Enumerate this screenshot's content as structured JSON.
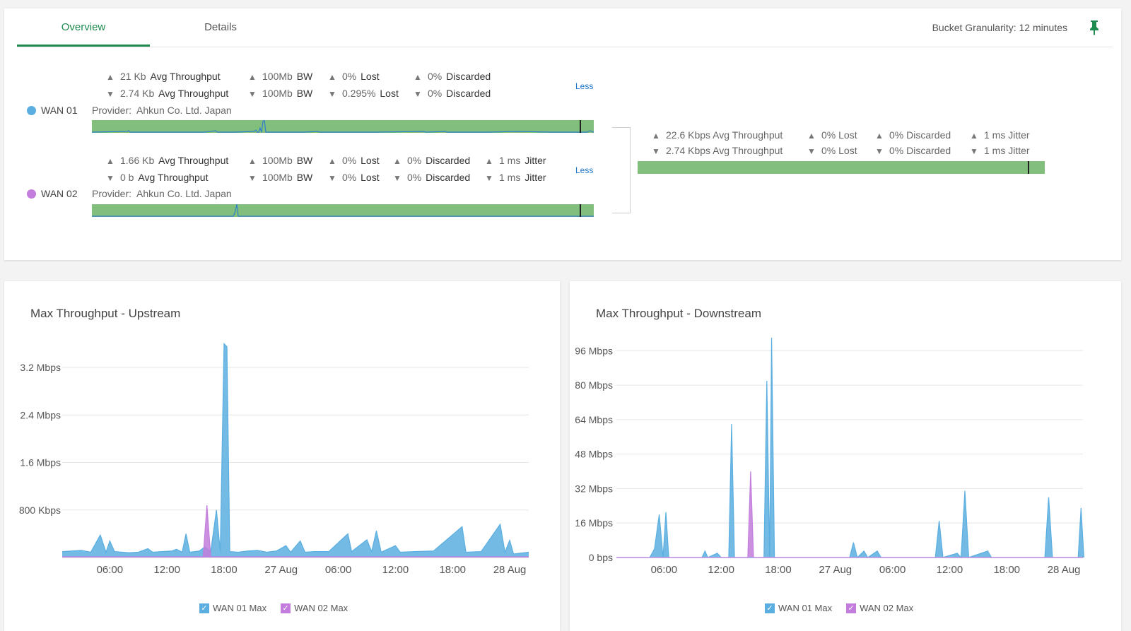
{
  "tabs": [
    {
      "label": "Overview",
      "active": true
    },
    {
      "label": "Details",
      "active": false
    }
  ],
  "granularity": "Bucket Granularity: 12 minutes",
  "colors": {
    "accent": "#1e8a4f",
    "wan01": "#5aaee0",
    "wan02": "#c37ddc",
    "bar_green": "#82bf7c",
    "link": "#1a73c9"
  },
  "wans": [
    {
      "name": "WAN 01",
      "provider_label": "Provider:",
      "provider": "Ahkun Co. Ltd. Japan",
      "less": "Less",
      "up": [
        {
          "value": "21 Kb",
          "label": "Avg Throughput"
        },
        {
          "value": "100Mb",
          "label": "BW"
        },
        {
          "value": "0%",
          "label": "Lost"
        },
        {
          "value": "0%",
          "label": "Discarded"
        }
      ],
      "down": [
        {
          "value": "2.74 Kb",
          "label": "Avg Throughput"
        },
        {
          "value": "100Mb",
          "label": "BW"
        },
        {
          "value": "0.295%",
          "label": "Lost"
        },
        {
          "value": "0%",
          "label": "Discarded"
        }
      ]
    },
    {
      "name": "WAN 02",
      "provider_label": "Provider:",
      "provider": "Ahkun Co. Ltd. Japan",
      "less": "Less",
      "up": [
        {
          "value": "1.66 Kb",
          "label": "Avg Throughput"
        },
        {
          "value": "100Mb",
          "label": "BW"
        },
        {
          "value": "0%",
          "label": "Lost"
        },
        {
          "value": "0%",
          "label": "Discarded"
        },
        {
          "value": "1 ms",
          "label": "Jitter"
        }
      ],
      "down": [
        {
          "value": "0 b",
          "label": "Avg Throughput"
        },
        {
          "value": "100Mb",
          "label": "BW"
        },
        {
          "value": "0%",
          "label": "Lost"
        },
        {
          "value": "0%",
          "label": "Discarded"
        },
        {
          "value": "1 ms",
          "label": "Jitter"
        }
      ]
    }
  ],
  "combined": {
    "up": [
      "22.6 Kbps Avg Throughput",
      "0% Lost",
      "0% Discarded",
      "1 ms Jitter"
    ],
    "down": [
      "2.74 Kbps Avg Throughput",
      "0% Lost",
      "0% Discarded",
      "1 ms Jitter"
    ]
  },
  "icons": {
    "pin": "pin-icon",
    "up": "triangle-up-icon",
    "down": "triangle-down-icon",
    "check": "checkbox-checked-icon"
  },
  "chart_data": [
    {
      "type": "area",
      "title": "Max Throughput - Upstream",
      "xlabel": "",
      "ylabel": "",
      "x_ticks": [
        "06:00",
        "12:00",
        "18:00",
        "27 Aug",
        "06:00",
        "12:00",
        "18:00",
        "28 Aug"
      ],
      "y_ticks": [
        "800 Kbps",
        "1.6 Mbps",
        "2.4 Mbps",
        "3.2 Mbps"
      ],
      "y_tick_values": [
        800,
        1600,
        2400,
        3200
      ],
      "ylim": [
        0,
        3700
      ],
      "x_range_hours": [
        1,
        50
      ],
      "unit": "Kbps",
      "legend_position": "bottom-center",
      "grid": true,
      "series": [
        {
          "name": "WAN 01 Max",
          "color": "#5aaee0",
          "points": [
            [
              1,
              100
            ],
            [
              3,
              120
            ],
            [
              4,
              90
            ],
            [
              5,
              380
            ],
            [
              5.6,
              90
            ],
            [
              6,
              280
            ],
            [
              6.5,
              100
            ],
            [
              8,
              80
            ],
            [
              9,
              90
            ],
            [
              10,
              150
            ],
            [
              10.5,
              90
            ],
            [
              11.5,
              100
            ],
            [
              12.5,
              110
            ],
            [
              13,
              140
            ],
            [
              13.6,
              90
            ],
            [
              14,
              400
            ],
            [
              14.4,
              90
            ],
            [
              15.4,
              110
            ],
            [
              16,
              180
            ],
            [
              16.6,
              100
            ],
            [
              17.2,
              800
            ],
            [
              17.6,
              100
            ],
            [
              18,
              3600
            ],
            [
              18.3,
              3550
            ],
            [
              18.6,
              100
            ],
            [
              19.5,
              90
            ],
            [
              20.5,
              110
            ],
            [
              21.5,
              120
            ],
            [
              22.5,
              90
            ],
            [
              23.5,
              110
            ],
            [
              24.5,
              200
            ],
            [
              25,
              90
            ],
            [
              26,
              280
            ],
            [
              26.5,
              90
            ],
            [
              27.5,
              100
            ],
            [
              29,
              100
            ],
            [
              31,
              400
            ],
            [
              31.4,
              100
            ],
            [
              33,
              300
            ],
            [
              33.5,
              100
            ],
            [
              34,
              450
            ],
            [
              34.5,
              90
            ],
            [
              36,
              200
            ],
            [
              36.5,
              90
            ],
            [
              38,
              100
            ],
            [
              40,
              110
            ],
            [
              43,
              520
            ],
            [
              43.4,
              90
            ],
            [
              45,
              100
            ],
            [
              47,
              560
            ],
            [
              47.5,
              90
            ],
            [
              48,
              290
            ],
            [
              48.4,
              60
            ],
            [
              50,
              90
            ]
          ]
        },
        {
          "name": "WAN 02 Max",
          "color": "#c37ddc",
          "points": [
            [
              1,
              10
            ],
            [
              15.8,
              10
            ],
            [
              16.2,
              880
            ],
            [
              16.6,
              10
            ],
            [
              50,
              10
            ]
          ]
        }
      ]
    },
    {
      "type": "area",
      "title": "Max Throughput - Downstream",
      "xlabel": "",
      "ylabel": "",
      "x_ticks": [
        "06:00",
        "12:00",
        "18:00",
        "27 Aug",
        "06:00",
        "12:00",
        "18:00",
        "28 Aug"
      ],
      "y_ticks": [
        "0 bps",
        "16 Mbps",
        "32 Mbps",
        "48 Mbps",
        "64 Mbps",
        "80 Mbps",
        "96 Mbps"
      ],
      "y_tick_values": [
        0,
        16,
        32,
        48,
        64,
        80,
        96
      ],
      "ylim": [
        0,
        102
      ],
      "x_range_hours": [
        1,
        50
      ],
      "unit": "Mbps",
      "legend_position": "bottom-center",
      "grid": true,
      "series": [
        {
          "name": "WAN 01 Max",
          "color": "#5aaee0",
          "points": [
            [
              1,
              0
            ],
            [
              4.5,
              0
            ],
            [
              5,
              4
            ],
            [
              5.5,
              20
            ],
            [
              5.9,
              0
            ],
            [
              6.2,
              21
            ],
            [
              6.5,
              0
            ],
            [
              10,
              0
            ],
            [
              10.3,
              3
            ],
            [
              10.6,
              0
            ],
            [
              11.6,
              2
            ],
            [
              12,
              0
            ],
            [
              12.8,
              0
            ],
            [
              13.1,
              62
            ],
            [
              13.4,
              0
            ],
            [
              16.5,
              0
            ],
            [
              16.8,
              82
            ],
            [
              17.1,
              0
            ],
            [
              17.3,
              102
            ],
            [
              17.6,
              0
            ],
            [
              25.5,
              0
            ],
            [
              25.9,
              7
            ],
            [
              26.3,
              0
            ],
            [
              27,
              3
            ],
            [
              27.4,
              0
            ],
            [
              28.4,
              3
            ],
            [
              28.8,
              0
            ],
            [
              34.5,
              0
            ],
            [
              34.9,
              17
            ],
            [
              35.3,
              0
            ],
            [
              36.8,
              2
            ],
            [
              37.2,
              0
            ],
            [
              37.6,
              31
            ],
            [
              38,
              0
            ],
            [
              40,
              3
            ],
            [
              40.4,
              0
            ],
            [
              46,
              0
            ],
            [
              46.4,
              28
            ],
            [
              46.8,
              0
            ],
            [
              49.5,
              0
            ],
            [
              49.8,
              23
            ],
            [
              50.1,
              0
            ]
          ]
        },
        {
          "name": "WAN 02 Max",
          "color": "#c37ddc",
          "points": [
            [
              1,
              0
            ],
            [
              14.8,
              0
            ],
            [
              15.1,
              40
            ],
            [
              15.4,
              0
            ],
            [
              50,
              0
            ]
          ]
        }
      ]
    }
  ]
}
